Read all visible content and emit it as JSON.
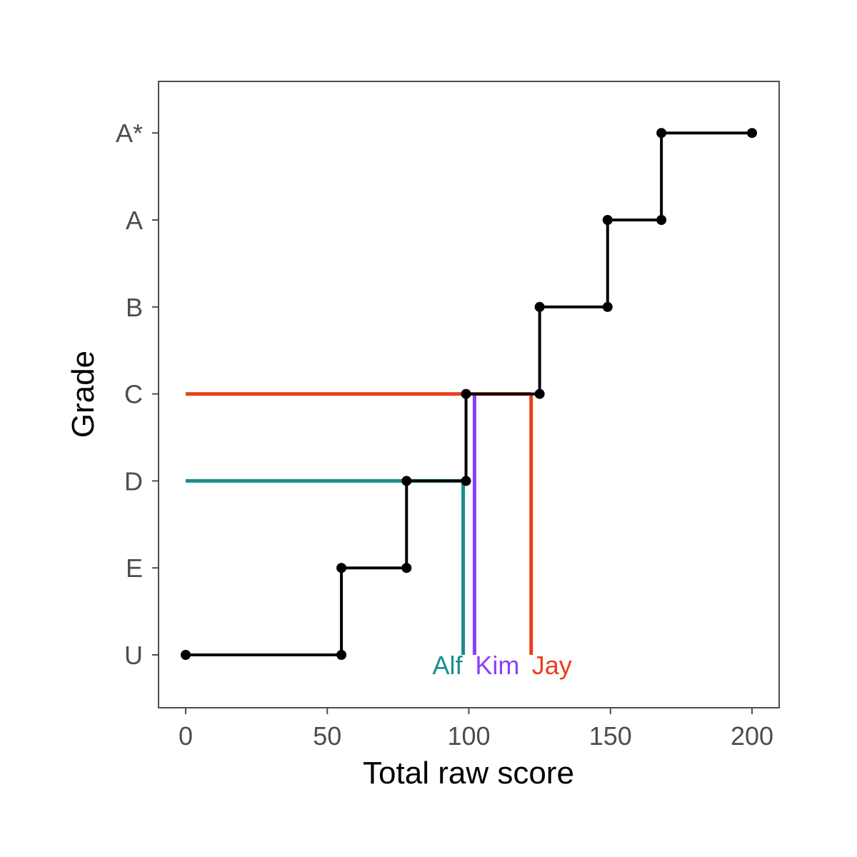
{
  "chart_data": {
    "type": "line",
    "title": "",
    "xlabel": "Total raw score",
    "ylabel": "Grade",
    "xlim": [
      0,
      200
    ],
    "x_ticks": [
      0,
      50,
      100,
      150,
      200
    ],
    "y_categories": [
      "U",
      "E",
      "D",
      "C",
      "B",
      "A",
      "A*"
    ],
    "grid": false,
    "legend": "none",
    "grade_boundary_series": {
      "color": "#000000",
      "points": [
        {
          "x": 0,
          "grade": "U"
        },
        {
          "x": 55,
          "grade": "U"
        },
        {
          "x": 55,
          "grade": "E"
        },
        {
          "x": 78,
          "grade": "E"
        },
        {
          "x": 78,
          "grade": "D"
        },
        {
          "x": 99,
          "grade": "D"
        },
        {
          "x": 99,
          "grade": "C"
        },
        {
          "x": 125,
          "grade": "C"
        },
        {
          "x": 125,
          "grade": "B"
        },
        {
          "x": 149,
          "grade": "B"
        },
        {
          "x": 149,
          "grade": "A"
        },
        {
          "x": 168,
          "grade": "A"
        },
        {
          "x": 168,
          "grade": "A*"
        },
        {
          "x": 200,
          "grade": "A*"
        }
      ]
    },
    "students": [
      {
        "name": "Alf",
        "score": 98,
        "grade": "D",
        "color": "#1a8c8c",
        "horizontal_line": true
      },
      {
        "name": "Kim",
        "score": 102,
        "grade": "C",
        "color": "#8a3ffc",
        "horizontal_line": false
      },
      {
        "name": "Jay",
        "score": 122,
        "grade": "C",
        "color": "#e8401c",
        "horizontal_line": true
      }
    ]
  }
}
